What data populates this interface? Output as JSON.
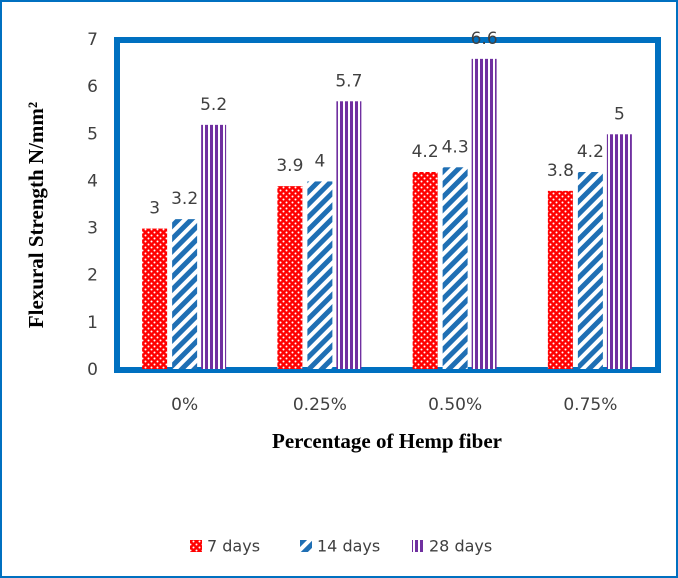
{
  "chart_data": {
    "type": "bar",
    "x_label": "Percentage of Hemp fiber",
    "y_label": "Flexural Strength N/mm²",
    "categories": [
      "0%",
      "0.25%",
      "0.50%",
      "0.75%"
    ],
    "series": [
      {
        "name": "7 days",
        "color": "#ff0000",
        "pattern": "dots",
        "values": [
          3,
          3.9,
          4.2,
          3.8
        ]
      },
      {
        "name": "14 days",
        "color": "#1f6fb4",
        "pattern": "diagonal",
        "values": [
          3.2,
          4,
          4.3,
          4.2
        ]
      },
      {
        "name": "28 days",
        "color": "#7030a0",
        "pattern": "vertical",
        "values": [
          5.2,
          5.7,
          6.6,
          5
        ]
      }
    ],
    "ylim": [
      0,
      7
    ],
    "yticks": [
      0,
      1,
      2,
      3,
      4,
      5,
      6,
      7
    ],
    "grid": false,
    "legend": "bottom"
  }
}
